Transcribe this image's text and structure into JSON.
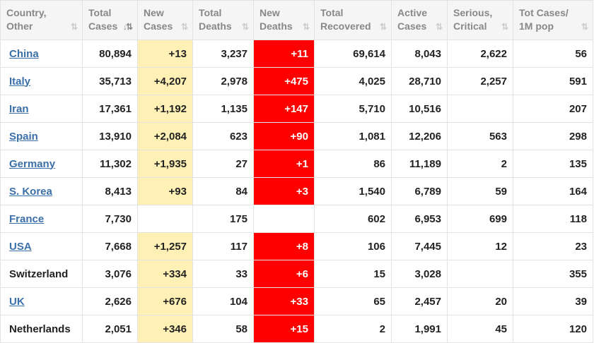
{
  "columns": [
    {
      "line1": "Country,",
      "line2": "Other",
      "sort": "⇅"
    },
    {
      "line1": "Total",
      "line2": "Cases",
      "sort": "↓⇅"
    },
    {
      "line1": "New",
      "line2": "Cases",
      "sort": "⇅"
    },
    {
      "line1": "Total",
      "line2": "Deaths",
      "sort": "⇅"
    },
    {
      "line1": "New",
      "line2": "Deaths",
      "sort": "⇅"
    },
    {
      "line1": "Total",
      "line2": "Recovered",
      "sort": "⇅"
    },
    {
      "line1": "Active",
      "line2": "Cases",
      "sort": "⇅"
    },
    {
      "line1": "Serious,",
      "line2": "Critical",
      "sort": "⇅"
    },
    {
      "line1": "Tot Cases/",
      "line2": "1M pop",
      "sort": "⇅"
    }
  ],
  "rows": [
    {
      "country": "China",
      "link": true,
      "total_cases": "80,894",
      "new_cases": "+13",
      "total_deaths": "3,237",
      "new_deaths": "+11",
      "total_recovered": "69,614",
      "active_cases": "8,043",
      "serious_critical": "2,622",
      "tot_cases_per_1m": "56"
    },
    {
      "country": "Italy",
      "link": true,
      "total_cases": "35,713",
      "new_cases": "+4,207",
      "total_deaths": "2,978",
      "new_deaths": "+475",
      "total_recovered": "4,025",
      "active_cases": "28,710",
      "serious_critical": "2,257",
      "tot_cases_per_1m": "591"
    },
    {
      "country": "Iran",
      "link": true,
      "total_cases": "17,361",
      "new_cases": "+1,192",
      "total_deaths": "1,135",
      "new_deaths": "+147",
      "total_recovered": "5,710",
      "active_cases": "10,516",
      "serious_critical": "",
      "tot_cases_per_1m": "207"
    },
    {
      "country": "Spain",
      "link": true,
      "total_cases": "13,910",
      "new_cases": "+2,084",
      "total_deaths": "623",
      "new_deaths": "+90",
      "total_recovered": "1,081",
      "active_cases": "12,206",
      "serious_critical": "563",
      "tot_cases_per_1m": "298"
    },
    {
      "country": "Germany",
      "link": true,
      "total_cases": "11,302",
      "new_cases": "+1,935",
      "total_deaths": "27",
      "new_deaths": "+1",
      "total_recovered": "86",
      "active_cases": "11,189",
      "serious_critical": "2",
      "tot_cases_per_1m": "135"
    },
    {
      "country": "S. Korea",
      "link": true,
      "total_cases": "8,413",
      "new_cases": "+93",
      "total_deaths": "84",
      "new_deaths": "+3",
      "total_recovered": "1,540",
      "active_cases": "6,789",
      "serious_critical": "59",
      "tot_cases_per_1m": "164"
    },
    {
      "country": "France",
      "link": true,
      "total_cases": "7,730",
      "new_cases": "",
      "total_deaths": "175",
      "new_deaths": "",
      "total_recovered": "602",
      "active_cases": "6,953",
      "serious_critical": "699",
      "tot_cases_per_1m": "118"
    },
    {
      "country": "USA",
      "link": true,
      "total_cases": "7,668",
      "new_cases": "+1,257",
      "total_deaths": "117",
      "new_deaths": "+8",
      "total_recovered": "106",
      "active_cases": "7,445",
      "serious_critical": "12",
      "tot_cases_per_1m": "23"
    },
    {
      "country": "Switzerland",
      "link": false,
      "total_cases": "3,076",
      "new_cases": "+334",
      "total_deaths": "33",
      "new_deaths": "+6",
      "total_recovered": "15",
      "active_cases": "3,028",
      "serious_critical": "",
      "tot_cases_per_1m": "355"
    },
    {
      "country": "UK",
      "link": true,
      "total_cases": "2,626",
      "new_cases": "+676",
      "total_deaths": "104",
      "new_deaths": "+33",
      "total_recovered": "65",
      "active_cases": "2,457",
      "serious_critical": "20",
      "tot_cases_per_1m": "39"
    },
    {
      "country": "Netherlands",
      "link": false,
      "total_cases": "2,051",
      "new_cases": "+346",
      "total_deaths": "58",
      "new_deaths": "+15",
      "total_recovered": "2",
      "active_cases": "1,991",
      "serious_critical": "45",
      "tot_cases_per_1m": "120"
    }
  ],
  "colors": {
    "header_bg": "#f5f5f5",
    "new_cases_bg": "#fff1b5",
    "new_deaths_bg": "#ff0000",
    "link": "#3a6fa8"
  }
}
